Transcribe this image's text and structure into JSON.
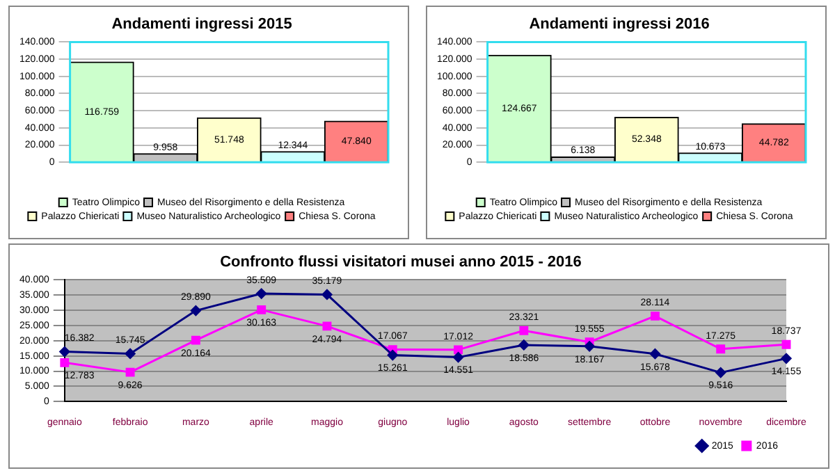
{
  "chart_data": [
    {
      "type": "bar",
      "title": "Andamenti ingressi 2015",
      "categories": [
        null
      ],
      "ylim": [
        0,
        140000
      ],
      "yticks": [
        {
          "value": 0,
          "label": "0"
        },
        {
          "value": 20000,
          "label": "20.000"
        },
        {
          "value": 40000,
          "label": "40.000"
        },
        {
          "value": 60000,
          "label": "60.000"
        },
        {
          "value": 80000,
          "label": "80.000"
        },
        {
          "value": 100000,
          "label": "100.000"
        },
        {
          "value": 120000,
          "label": "120.000"
        },
        {
          "value": 140000,
          "label": "140.000"
        }
      ],
      "grid": "y",
      "legend": "bottom",
      "series": [
        {
          "name": "Teatro Olimpico",
          "color": "#ccffcc",
          "values": [
            116759
          ],
          "value_labels": [
            "116.759"
          ]
        },
        {
          "name": "Museo del Risorgimento e della Resistenza",
          "color": "#c0c0c0",
          "values": [
            9958
          ],
          "value_labels": [
            "9.958"
          ]
        },
        {
          "name": "Palazzo Chiericati",
          "color": "#ffffcc",
          "values": [
            51748
          ],
          "value_labels": [
            "51.748"
          ]
        },
        {
          "name": "Museo Naturalistico Archeologico",
          "color": "#ccffff",
          "values": [
            12344
          ],
          "value_labels": [
            "12.344"
          ]
        },
        {
          "name": "Chiesa S. Corona",
          "color": "#ff8080",
          "values": [
            47840
          ],
          "value_labels": [
            "47.840"
          ]
        }
      ]
    },
    {
      "type": "bar",
      "title": "Andamenti ingressi 2016",
      "categories": [
        null
      ],
      "ylim": [
        0,
        140000
      ],
      "yticks": [
        {
          "value": 0,
          "label": "0"
        },
        {
          "value": 20000,
          "label": "20.000"
        },
        {
          "value": 40000,
          "label": "40.000"
        },
        {
          "value": 60000,
          "label": "60.000"
        },
        {
          "value": 80000,
          "label": "80.000"
        },
        {
          "value": 100000,
          "label": "100.000"
        },
        {
          "value": 120000,
          "label": "120.000"
        },
        {
          "value": 140000,
          "label": "140.000"
        }
      ],
      "grid": "y",
      "legend": "bottom",
      "series": [
        {
          "name": "Teatro Olimpico",
          "color": "#ccffcc",
          "values": [
            124667
          ],
          "value_labels": [
            "124.667"
          ]
        },
        {
          "name": "Museo del Risorgimento e della Resistenza",
          "color": "#c0c0c0",
          "values": [
            6138
          ],
          "value_labels": [
            "6.138"
          ]
        },
        {
          "name": "Palazzo Chiericati",
          "color": "#ffffcc",
          "values": [
            52348
          ],
          "value_labels": [
            "52.348"
          ]
        },
        {
          "name": "Museo Naturalistico Archeologico",
          "color": "#ccffff",
          "values": [
            10673
          ],
          "value_labels": [
            "10.673"
          ]
        },
        {
          "name": "Chiesa S. Corona",
          "color": "#ff8080",
          "values": [
            44782
          ],
          "value_labels": [
            "44.782"
          ]
        }
      ]
    },
    {
      "type": "line",
      "title": "Confronto flussi visitatori musei anno 2015 - 2016",
      "categories": [
        "gennaio",
        "febbraio",
        "marzo",
        "aprile",
        "maggio",
        "giugno",
        "luglio",
        "agosto",
        "settembre",
        "ottobre",
        "novembre",
        "dicembre"
      ],
      "ylim": [
        0,
        40000
      ],
      "yticks": [
        {
          "value": 0,
          "label": "0"
        },
        {
          "value": 5000,
          "label": "5.000"
        },
        {
          "value": 10000,
          "label": "10.000"
        },
        {
          "value": 15000,
          "label": "15.000"
        },
        {
          "value": 20000,
          "label": "20.000"
        },
        {
          "value": 25000,
          "label": "25.000"
        },
        {
          "value": 30000,
          "label": "30.000"
        },
        {
          "value": 35000,
          "label": "35.000"
        },
        {
          "value": 40000,
          "label": "40.000"
        }
      ],
      "grid": "y",
      "legend": "bottom right",
      "line_style": "solid",
      "series": [
        {
          "name": "2015",
          "color": "#000080",
          "marker": "diamond",
          "values": [
            16382,
            15745,
            29890,
            35509,
            35179,
            15261,
            14551,
            18586,
            18167,
            15678,
            9516,
            14155
          ],
          "value_labels": [
            "16.382",
            "15.745",
            "29.890",
            "35.509",
            "35.179",
            "15.261",
            "14.551",
            "18.586",
            "18.167",
            "15.678",
            "9.516",
            "14.155"
          ]
        },
        {
          "name": "2016",
          "color": "#ff00ff",
          "marker": "square",
          "values": [
            12783,
            9626,
            20164,
            30163,
            24794,
            17067,
            17012,
            23321,
            19555,
            28114,
            17275,
            18737
          ],
          "value_labels": [
            "12.783",
            "9.626",
            "20.164",
            "30.163",
            "24.794",
            "17.067",
            "17.012",
            "23.321",
            "19.555",
            "28.114",
            "17.275",
            "18.737"
          ]
        }
      ]
    }
  ]
}
